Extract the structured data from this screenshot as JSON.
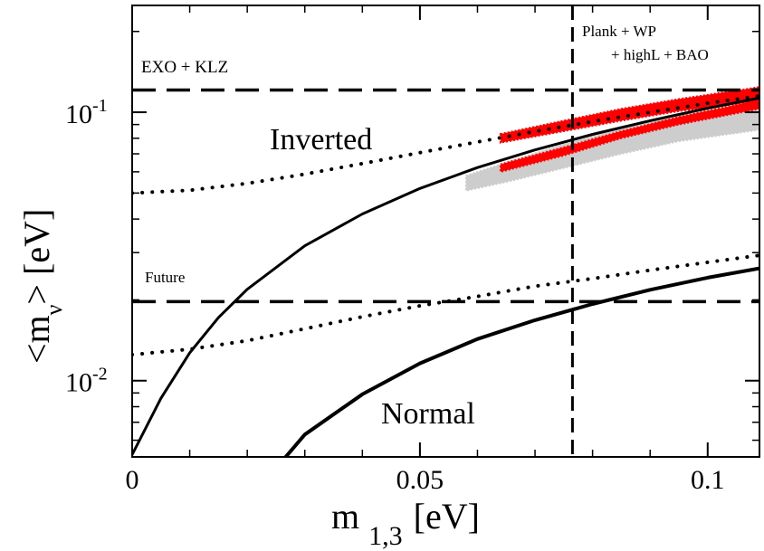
{
  "chart_data": {
    "type": "line",
    "xlabel": "m",
    "xlabel_sub": "1,3",
    "xlabel_unit": "[eV]",
    "ylabel": "<m",
    "ylabel_sub": "ν",
    "ylabel_unit": "> [eV]",
    "xlim": [
      0,
      0.109
    ],
    "ylim": [
      0.0052,
      0.25
    ],
    "yscale": "log",
    "x_ticks": [
      {
        "value": 0,
        "label": "0"
      },
      {
        "value": 0.05,
        "label": "0.05"
      },
      {
        "value": 0.1,
        "label": "0.1"
      }
    ],
    "y_ticks": [
      {
        "value": 0.01,
        "base": "10",
        "exp": "-2"
      },
      {
        "value": 0.1,
        "base": "10",
        "exp": "-1"
      }
    ],
    "series": [
      {
        "style": "solid",
        "color": "#000000",
        "x": [
          0.0,
          0.005,
          0.01,
          0.015,
          0.02,
          0.03,
          0.04,
          0.05,
          0.06,
          0.07,
          0.08,
          0.09,
          0.1,
          0.109
        ],
        "y": [
          0.0053,
          0.0086,
          0.0127,
          0.0172,
          0.0219,
          0.0318,
          0.0418,
          0.052,
          0.0622,
          0.0724,
          0.0827,
          0.093,
          0.1035,
          0.113
        ]
      },
      {
        "style": "solid",
        "color": "#000000",
        "width": "thick",
        "x": [
          0.026,
          0.03,
          0.04,
          0.05,
          0.06,
          0.07,
          0.08,
          0.09,
          0.1,
          0.109
        ],
        "y": [
          0.005,
          0.0063,
          0.0089,
          0.0116,
          0.0143,
          0.0168,
          0.0193,
          0.0218,
          0.0242,
          0.0262
        ]
      },
      {
        "style": "dotted",
        "color": "#000000",
        "x": [
          0.0,
          0.01,
          0.02,
          0.03,
          0.04,
          0.05,
          0.06,
          0.07,
          0.08,
          0.09,
          0.1,
          0.109
        ],
        "y": [
          0.05,
          0.0512,
          0.0543,
          0.0588,
          0.0644,
          0.0707,
          0.0775,
          0.0848,
          0.0923,
          0.1,
          0.108,
          0.115
        ]
      },
      {
        "style": "dotted",
        "color": "#000000",
        "x": [
          0.0,
          0.01,
          0.02,
          0.03,
          0.04,
          0.05,
          0.06,
          0.07,
          0.08,
          0.09,
          0.1,
          0.109
        ],
        "y": [
          0.0125,
          0.0131,
          0.0141,
          0.0156,
          0.0173,
          0.019,
          0.0206,
          0.0225,
          0.024,
          0.0258,
          0.0276,
          0.0293
        ]
      }
    ],
    "bands": [
      {
        "color": "#c8c8c8",
        "x": [
          0.058,
          0.065,
          0.075,
          0.085,
          0.095,
          0.109
        ],
        "low": [
          0.051,
          0.055,
          0.062,
          0.07,
          0.078,
          0.086
        ],
        "high": [
          0.058,
          0.065,
          0.076,
          0.087,
          0.098,
          0.108
        ]
      },
      {
        "color": "#ff0000",
        "x": [
          0.064,
          0.075,
          0.085,
          0.095,
          0.109
        ],
        "low": [
          0.077,
          0.085,
          0.093,
          0.101,
          0.11
        ],
        "high": [
          0.083,
          0.093,
          0.103,
          0.112,
          0.124
        ]
      },
      {
        "color": "#ff0000",
        "x": [
          0.064,
          0.075,
          0.085,
          0.095,
          0.109
        ],
        "low": [
          0.06,
          0.069,
          0.08,
          0.09,
          0.103
        ],
        "high": [
          0.064,
          0.074,
          0.085,
          0.096,
          0.111
        ]
      }
    ],
    "reference_lines": [
      {
        "orientation": "horizontal",
        "value": 0.121,
        "style": "dashed",
        "label": "EXO + KLZ"
      },
      {
        "orientation": "horizontal",
        "value": 0.0197,
        "style": "dashed",
        "label": "Future"
      },
      {
        "orientation": "vertical",
        "value": 0.0765,
        "style": "dashed",
        "label_lines": [
          "Plank + WP",
          "+ highL + BAO"
        ]
      }
    ],
    "annotations": [
      {
        "text": "Inverted",
        "x": 0.031,
        "y": 0.075
      },
      {
        "text": "Normal",
        "x": 0.044,
        "y": 0.0079
      }
    ],
    "grid": false
  }
}
